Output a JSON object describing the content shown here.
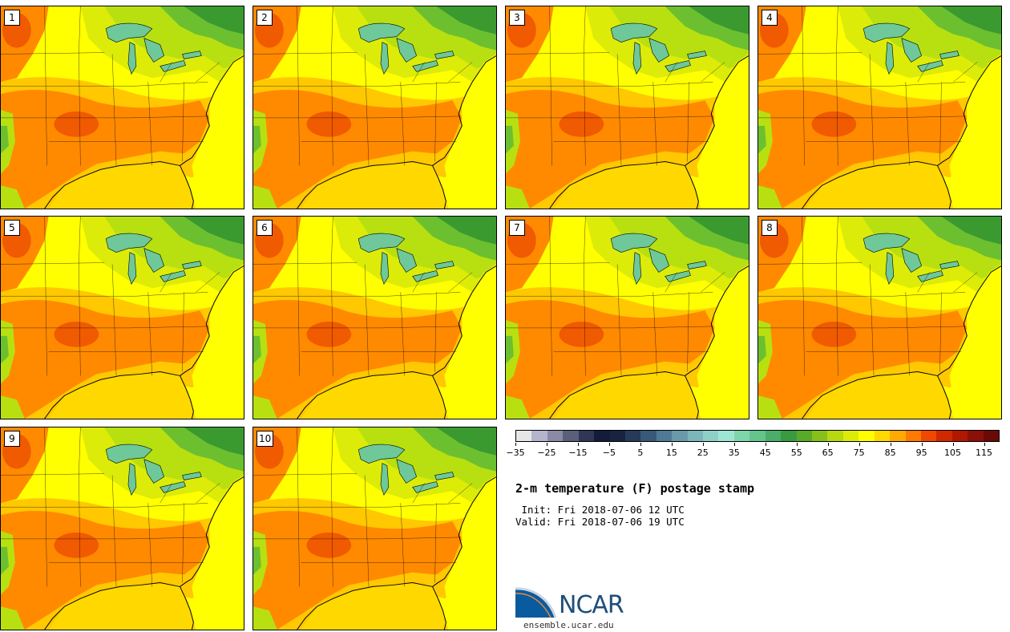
{
  "title": "2-m temperature (F) postage stamp",
  "init_line": " Init: Fri 2018-07-06 12 UTC",
  "valid_line": "Valid: Fri 2018-07-06 19 UTC",
  "members": [
    "1",
    "2",
    "3",
    "4",
    "5",
    "6",
    "7",
    "8",
    "9",
    "10"
  ],
  "colorbar": {
    "ticks": [
      "−35",
      "−25",
      "−15",
      "−5",
      "5",
      "15",
      "25",
      "35",
      "45",
      "55",
      "65",
      "75",
      "85",
      "95",
      "105",
      "115"
    ],
    "colors": [
      "#e6e6e6",
      "#b4b4cc",
      "#8a8aa8",
      "#5a5f7a",
      "#2f3656",
      "#141c3a",
      "#18243e",
      "#263a5a",
      "#3a5878",
      "#4f7a96",
      "#6a9aaa",
      "#7cb6ba",
      "#8ed0c8",
      "#9ee6d4",
      "#7ed6aa",
      "#64c48c",
      "#4aae6a",
      "#3a9a40",
      "#5aaa2a",
      "#86c01a",
      "#b8d810",
      "#dcec08",
      "#ffff00",
      "#ffd800",
      "#ffaa00",
      "#ff7a00",
      "#f04800",
      "#d02800",
      "#b01800",
      "#8a1008",
      "#6a0a04"
    ]
  },
  "colors": {
    "hot": "#ff8a00",
    "very_hot": "#f05a00",
    "warm": "#ffc800",
    "mild": "#ffff00",
    "cool_green": "#b8e010",
    "green": "#6cc030",
    "dark_green": "#3a9a30",
    "lake": "#6ec89a"
  },
  "logo": {
    "name": "NCAR",
    "site": "ensemble.ucar.edu"
  }
}
